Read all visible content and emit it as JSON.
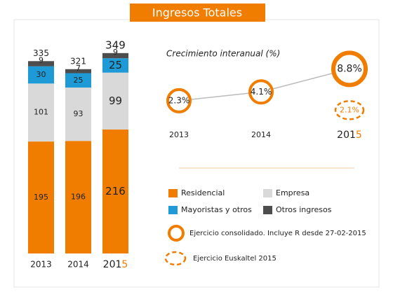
{
  "title": "Ingresos Totales",
  "chart_data": [
    {
      "type": "bar",
      "stacked": true,
      "categories": [
        "2013",
        "2014",
        "2015"
      ],
      "series": [
        {
          "name": "Residencial",
          "color": "#f07d00",
          "values": [
            195,
            196,
            216
          ]
        },
        {
          "name": "Empresa",
          "color": "#d9d9d9",
          "values": [
            101,
            93,
            99
          ]
        },
        {
          "name": "Mayoristas y otros",
          "color": "#1e9ad6",
          "values": [
            30,
            25,
            25
          ]
        },
        {
          "name": "Otros ingresos",
          "color": "#4d4d4d",
          "values": [
            9,
            7,
            9
          ]
        }
      ],
      "totals": [
        335,
        321,
        349
      ]
    },
    {
      "type": "line",
      "title": "Crecimiento interanual (%)",
      "categories": [
        "2013",
        "2014",
        "2015"
      ],
      "series": [
        {
          "name": "Ejercicio consolidado. Incluye R desde 27-02-2015",
          "color": "#f07d00",
          "values": [
            2.3,
            4.1,
            8.8
          ],
          "value_labels": [
            "2.3%",
            "4.1%",
            "8.8%"
          ]
        },
        {
          "name": "Ejercicio Euskaltel 2015",
          "color": "#f07d00",
          "dashed": true,
          "values": [
            null,
            null,
            2.1
          ],
          "value_labels": [
            null,
            null,
            "2.1%"
          ]
        }
      ]
    }
  ]
}
